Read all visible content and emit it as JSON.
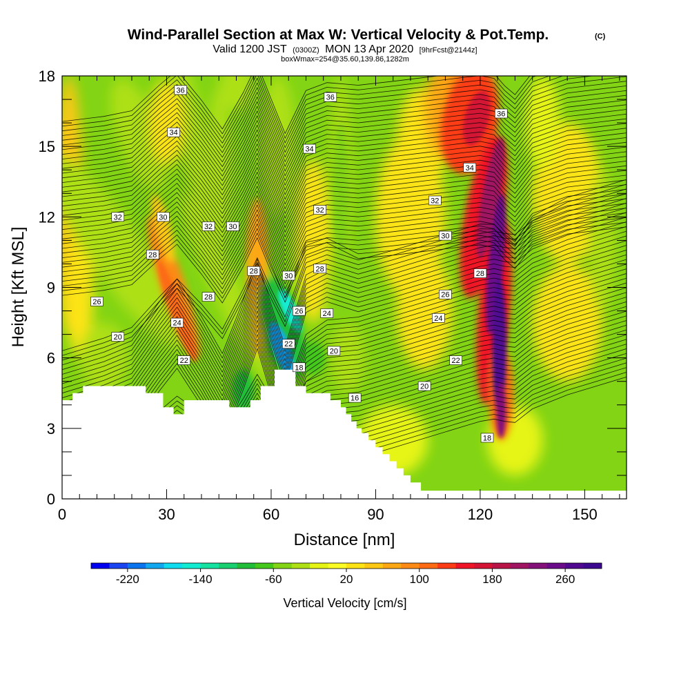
{
  "header": {
    "title": "Wind-Parallel Section at Max W: Vertical Velocity & Pot.Temp.",
    "title_mark": "(C)",
    "valid_prefix": "Valid 1200 JST",
    "valid_utc": "(0300Z)",
    "valid_date": "MON 13 Apr 2020",
    "forecast": "[9hrFcst@2144z]",
    "box_info": "boxWmax=254@35.60,139.86,1282m"
  },
  "colorbar": {
    "title": "Vertical Velocity [cm/s]",
    "ticks": [
      "-220",
      "-140",
      "-60",
      "20",
      "100",
      "180",
      "260"
    ],
    "min": -260,
    "max": 300,
    "step": 20,
    "colors": [
      "#0000f0",
      "#1a44f0",
      "#0a74ee",
      "#12a8f0",
      "#10dcf0",
      "#12ecd2",
      "#14e2a0",
      "#18d070",
      "#22be3a",
      "#44c81c",
      "#82d414",
      "#aee014",
      "#e6f414",
      "#fbfc24",
      "#fce414",
      "#fcc814",
      "#fca814",
      "#fc8a14",
      "#fc6a14",
      "#fc3c14",
      "#f01428",
      "#d41434",
      "#b81446",
      "#a01462",
      "#84107a",
      "#6a0c8a",
      "#500890",
      "#3c0890"
    ]
  },
  "chart_data": {
    "type": "heatmap",
    "title": "Wind-Parallel Section at Max W: Vertical Velocity & Pot.Temp.",
    "xlabel": "Distance [nm]",
    "ylabel": "Height [Kft MSL]",
    "xlim": [
      0,
      162
    ],
    "ylim": [
      0,
      18
    ],
    "x_ticks": [
      0,
      30,
      60,
      90,
      120,
      150
    ],
    "y_ticks": [
      0,
      3,
      6,
      9,
      12,
      15,
      18
    ],
    "field": "Vertical Velocity [cm/s]",
    "contour_field": "Potential temperature",
    "velocity_features": [
      {
        "kind": "updraft",
        "x_nm": 125,
        "z_top_kft": 16,
        "z_bottom_kft": 2.5,
        "peak_cm_s": 260
      },
      {
        "kind": "updraft",
        "x_nm": 32,
        "z_top_kft": 12,
        "z_bottom_kft": 5,
        "peak_cm_s": 120
      },
      {
        "kind": "updraft",
        "x_nm": 56,
        "z_top_kft": 12.5,
        "z_bottom_kft": 6,
        "peak_cm_s": 90
      },
      {
        "kind": "downdraft",
        "x_nm": 63,
        "z_top_kft": 9,
        "z_bottom_kft": 5.5,
        "peak_cm_s": -200
      },
      {
        "kind": "downdraft",
        "x_nm": 52,
        "z_top_kft": 5,
        "z_bottom_kft": 4,
        "peak_cm_s": -100
      }
    ],
    "terrain_kft": [
      [
        0,
        4.2
      ],
      [
        3,
        4.2
      ],
      [
        3,
        4.5
      ],
      [
        6,
        4.5
      ],
      [
        6,
        4.8
      ],
      [
        24,
        4.8
      ],
      [
        24,
        4.5
      ],
      [
        29,
        4.5
      ],
      [
        29,
        3.9
      ],
      [
        32,
        3.9
      ],
      [
        32,
        3.6
      ],
      [
        35,
        3.6
      ],
      [
        35,
        4.2
      ],
      [
        48,
        4.2
      ],
      [
        48,
        3.9
      ],
      [
        54,
        3.9
      ],
      [
        54,
        4.2
      ],
      [
        57,
        4.2
      ],
      [
        57,
        4.8
      ],
      [
        61,
        4.8
      ],
      [
        61,
        5.5
      ],
      [
        67,
        5.5
      ],
      [
        67,
        4.8
      ],
      [
        70,
        4.8
      ],
      [
        70,
        4.5
      ],
      [
        77,
        4.5
      ],
      [
        77,
        4.2
      ],
      [
        80,
        4.2
      ],
      [
        80,
        3.9
      ],
      [
        81.5,
        3.9
      ],
      [
        81.5,
        3.6
      ],
      [
        83,
        3.6
      ],
      [
        83,
        3.3
      ],
      [
        84.5,
        3.3
      ],
      [
        84.5,
        3.0
      ],
      [
        86,
        3.0
      ],
      [
        86,
        2.8
      ],
      [
        88,
        2.8
      ],
      [
        88,
        2.5
      ],
      [
        90,
        2.5
      ],
      [
        90,
        2.2
      ],
      [
        92,
        2.2
      ],
      [
        92,
        1.9
      ],
      [
        94,
        1.9
      ],
      [
        94,
        1.6
      ],
      [
        96,
        1.6
      ],
      [
        96,
        1.3
      ],
      [
        98,
        1.3
      ],
      [
        98,
        1.0
      ],
      [
        100,
        1.0
      ],
      [
        100,
        0.7
      ],
      [
        103,
        0.7
      ],
      [
        103,
        0.35
      ],
      [
        162,
        0.35
      ]
    ],
    "contour_labels": [
      {
        "text": "36",
        "x": 34,
        "y": 17.4
      },
      {
        "text": "36",
        "x": 77,
        "y": 17.1
      },
      {
        "text": "36",
        "x": 126,
        "y": 16.4
      },
      {
        "text": "34",
        "x": 32,
        "y": 15.6
      },
      {
        "text": "34",
        "x": 71,
        "y": 14.9
      },
      {
        "text": "34",
        "x": 117,
        "y": 14.1
      },
      {
        "text": "32",
        "x": 16,
        "y": 12.0
      },
      {
        "text": "32",
        "x": 42,
        "y": 11.6
      },
      {
        "text": "32",
        "x": 74,
        "y": 12.3
      },
      {
        "text": "32",
        "x": 107,
        "y": 12.7
      },
      {
        "text": "30",
        "x": 29,
        "y": 12.0
      },
      {
        "text": "30",
        "x": 49,
        "y": 11.6
      },
      {
        "text": "30",
        "x": 65,
        "y": 9.5
      },
      {
        "text": "30",
        "x": 110,
        "y": 11.2
      },
      {
        "text": "28",
        "x": 26,
        "y": 10.4
      },
      {
        "text": "28",
        "x": 42,
        "y": 8.6
      },
      {
        "text": "28",
        "x": 55,
        "y": 9.7
      },
      {
        "text": "28",
        "x": 74,
        "y": 9.8
      },
      {
        "text": "28",
        "x": 120,
        "y": 9.6
      },
      {
        "text": "26",
        "x": 10,
        "y": 8.4
      },
      {
        "text": "26",
        "x": 68,
        "y": 8.0
      },
      {
        "text": "26",
        "x": 110,
        "y": 8.7
      },
      {
        "text": "24",
        "x": 33,
        "y": 7.5
      },
      {
        "text": "24",
        "x": 76,
        "y": 7.9
      },
      {
        "text": "24",
        "x": 108,
        "y": 7.7
      },
      {
        "text": "22",
        "x": 35,
        "y": 5.9
      },
      {
        "text": "22",
        "x": 65,
        "y": 6.6
      },
      {
        "text": "22",
        "x": 113,
        "y": 5.9
      },
      {
        "text": "20",
        "x": 16,
        "y": 6.9
      },
      {
        "text": "20",
        "x": 78,
        "y": 6.3
      },
      {
        "text": "20",
        "x": 104,
        "y": 4.8
      },
      {
        "text": "18",
        "x": 68,
        "y": 5.6
      },
      {
        "text": "18",
        "x": 122,
        "y": 2.6
      },
      {
        "text": "16",
        "x": 84,
        "y": 4.3
      }
    ]
  }
}
